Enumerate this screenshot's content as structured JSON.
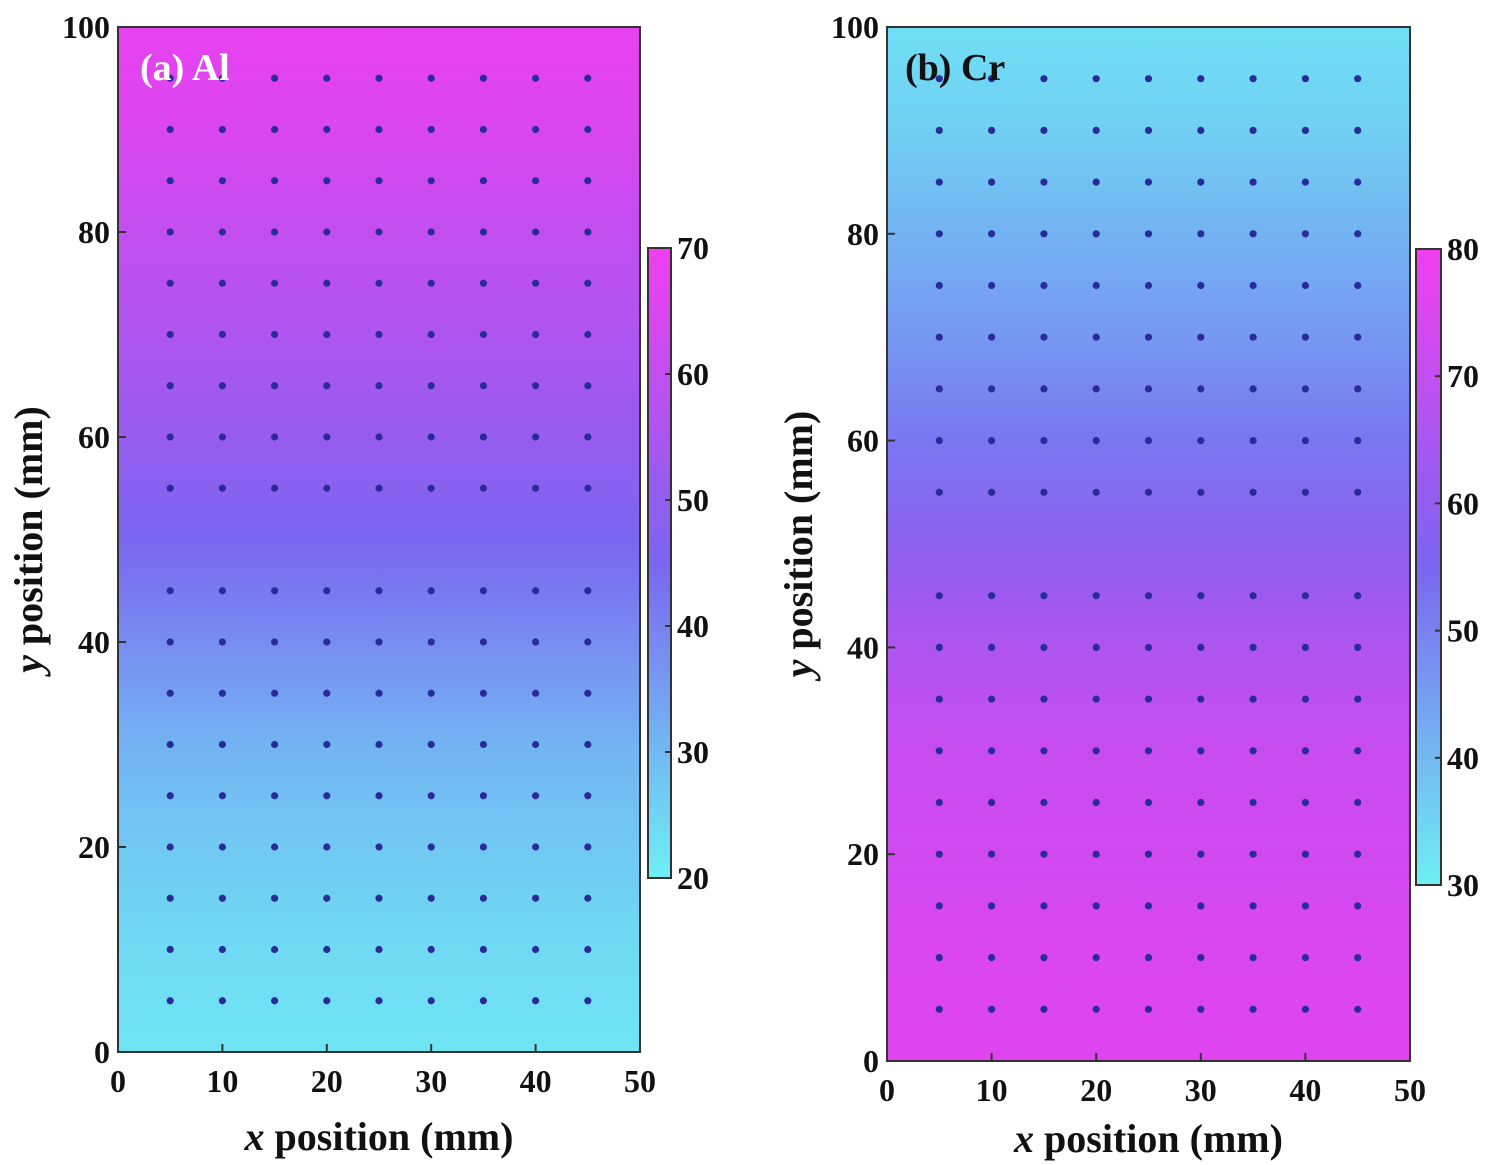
{
  "chart_data": [
    {
      "type": "heatmap",
      "title": "(a) Al",
      "xlabel_var": "x",
      "xlabel_rest": " position (mm)",
      "ylabel_var": "y",
      "ylabel_rest": " position (mm)",
      "xlim": [
        0,
        50
      ],
      "ylim": [
        0,
        100
      ],
      "xticks": [
        "0",
        "10",
        "20",
        "30",
        "40",
        "50"
      ],
      "yticks": [
        "0",
        "20",
        "40",
        "60",
        "80",
        "100"
      ],
      "colorbar": {
        "min": 20,
        "max": 70,
        "ticks": [
          "20",
          "30",
          "40",
          "50",
          "60",
          "70"
        ],
        "low_color": "#6ef0f4",
        "high_color": "#f23ef0",
        "mid_color": "#7a66f0"
      },
      "measurement_points": {
        "x": [
          5,
          10,
          15,
          20,
          25,
          30,
          35,
          40,
          45
        ],
        "y": [
          5,
          10,
          15,
          20,
          25,
          30,
          35,
          40,
          45,
          55,
          60,
          65,
          70,
          75,
          80,
          85,
          90,
          95
        ],
        "point_color": "#2a2a9a"
      },
      "value_profile": {
        "y": [
          0,
          10,
          20,
          30,
          40,
          50,
          60,
          70,
          80,
          90,
          100
        ],
        "values": [
          22,
          24,
          27,
          31,
          38,
          45,
          51,
          56,
          60,
          65,
          68
        ]
      }
    },
    {
      "type": "heatmap",
      "title": "(b) Cr",
      "xlabel_var": "x",
      "xlabel_rest": " position (mm)",
      "ylabel_var": "y",
      "ylabel_rest": " position (mm)",
      "xlim": [
        0,
        50
      ],
      "ylim": [
        0,
        100
      ],
      "xticks": [
        "0",
        "10",
        "20",
        "30",
        "40",
        "50"
      ],
      "yticks": [
        "0",
        "20",
        "40",
        "60",
        "80",
        "100"
      ],
      "colorbar": {
        "min": 30,
        "max": 80,
        "ticks": [
          "30",
          "40",
          "50",
          "60",
          "70",
          "80"
        ],
        "low_color": "#6ef0f4",
        "high_color": "#f23ef0",
        "mid_color": "#7a66f0"
      },
      "measurement_points": {
        "x": [
          5,
          10,
          15,
          20,
          25,
          30,
          35,
          40,
          45
        ],
        "y": [
          5,
          10,
          15,
          20,
          25,
          30,
          35,
          40,
          45,
          55,
          60,
          65,
          70,
          75,
          80,
          85,
          90,
          95
        ],
        "point_color": "#2a2a9a"
      },
      "value_profile": {
        "y": [
          0,
          10,
          20,
          30,
          40,
          50,
          60,
          70,
          80,
          90,
          100
        ],
        "values": [
          76,
          75,
          73,
          71,
          66,
          59,
          52,
          46,
          41,
          36,
          33
        ]
      }
    }
  ]
}
